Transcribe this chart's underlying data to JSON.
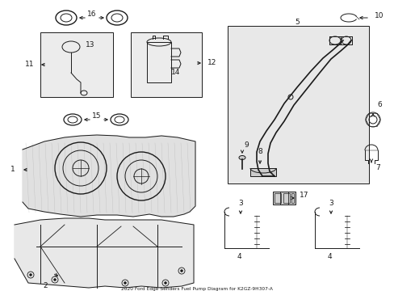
{
  "background_color": "#ffffff",
  "line_color": "#1a1a1a",
  "text_color": "#1a1a1a",
  "shaded_box_color": "#e8e8e8",
  "fig_width": 4.89,
  "fig_height": 3.6,
  "dpi": 100,
  "title": "2020 Ford Edge Senders Fuel Pump Diagram for K2GZ-9H307-A"
}
